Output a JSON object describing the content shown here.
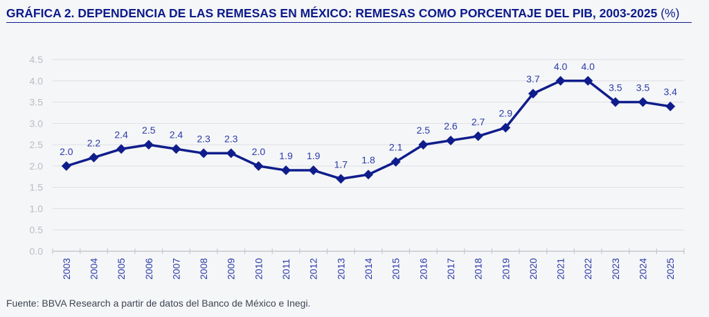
{
  "title": {
    "text": "GRÁFICA 2. DEPENDENCIA DE LAS REMESAS EN MÉXICO: REMESAS COMO PORCENTAJE DEL PIB, 2003-2025",
    "unit": "(%)"
  },
  "source": "Fuente: BBVA Research a partir de datos del Banco de México e Inegi.",
  "colors": {
    "line": "#0f1d8c",
    "title": "#0c1a8a",
    "labels": "#2a3aa8",
    "yticks": "#b8bcc4",
    "grid": "#dcdfe4"
  },
  "chart_data": {
    "type": "line",
    "title": "GRÁFICA 2. DEPENDENCIA DE LAS REMESAS EN MÉXICO: REMESAS COMO PORCENTAJE DEL PIB, 2003-2025 (%)",
    "categories": [
      "2003",
      "2004",
      "2005",
      "2006",
      "2007",
      "2008",
      "2009",
      "2010",
      "2011",
      "2012",
      "2013",
      "2014",
      "2015",
      "2016",
      "2017",
      "2018",
      "2019",
      "2020",
      "2021",
      "2022",
      "2023",
      "2024",
      "2025"
    ],
    "values": [
      2.0,
      2.2,
      2.4,
      2.5,
      2.4,
      2.3,
      2.3,
      2.0,
      1.9,
      1.9,
      1.7,
      1.8,
      2.1,
      2.5,
      2.6,
      2.7,
      2.9,
      3.7,
      4.0,
      4.0,
      3.5,
      3.5,
      3.4
    ],
    "data_labels": [
      "2.0",
      "2.2",
      "2.4",
      "2.5",
      "2.4",
      "2.3",
      "2.3",
      "2.0",
      "1.9",
      "1.9",
      "1.7",
      "1.8",
      "2.1",
      "2.5",
      "2.6",
      "2.7",
      "2.9",
      "3.7",
      "4.0",
      "4.0",
      "3.5",
      "3.5",
      "3.4"
    ],
    "yticks": [
      "0.0",
      "0.5",
      "1.0",
      "1.5",
      "2.0",
      "2.5",
      "3.0",
      "3.5",
      "4.0",
      "4.5"
    ],
    "ylim": [
      0,
      4.5
    ],
    "grid": true,
    "marker": "diamond",
    "xlabel": "",
    "ylabel": ""
  }
}
